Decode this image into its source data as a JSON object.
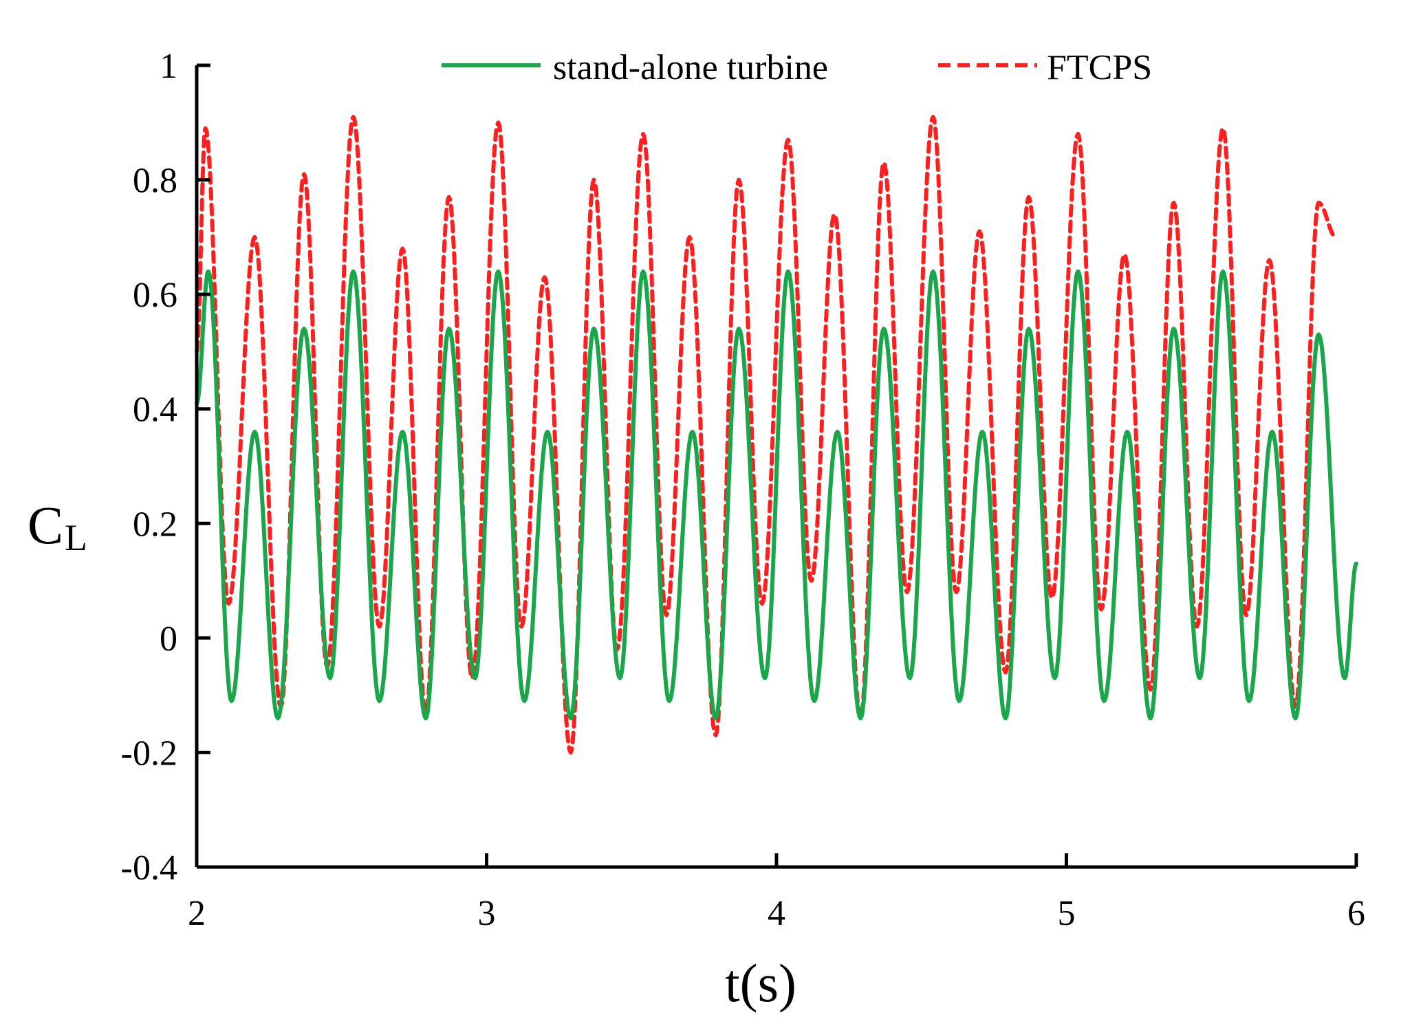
{
  "chart_data": {
    "type": "line",
    "title": "",
    "xlabel": "t(s)",
    "ylabel": "C",
    "ylabel_subscript": "L",
    "xlim": [
      2,
      6
    ],
    "ylim": [
      -0.4,
      1
    ],
    "x_ticks": [
      2,
      3,
      4,
      5,
      6
    ],
    "x_tick_labels": [
      "2",
      "3",
      "4",
      "5",
      "6"
    ],
    "y_ticks": [
      -0.4,
      -0.2,
      0,
      0.2,
      0.4,
      0.6,
      0.8,
      1
    ],
    "y_tick_labels": [
      "-0.4",
      "-0.2",
      "0",
      "0.2",
      "0.4",
      "0.6",
      "0.8",
      "1"
    ],
    "grid": false,
    "legend_position": "top-right",
    "series": [
      {
        "name": "stand-alone turbine",
        "color": "#1aa64a",
        "style": "solid",
        "x": [
          2.0,
          2.04,
          2.12,
          2.2,
          2.28,
          2.37,
          2.46,
          2.54,
          2.63,
          2.71,
          2.79,
          2.87,
          2.96,
          3.04,
          3.13,
          3.21,
          3.29,
          3.37,
          3.46,
          3.54,
          3.63,
          3.71,
          3.79,
          3.87,
          3.96,
          4.04,
          4.13,
          4.21,
          4.29,
          4.37,
          4.46,
          4.54,
          4.63,
          4.71,
          4.79,
          4.87,
          4.96,
          5.04,
          5.13,
          5.21,
          5.29,
          5.37,
          5.46,
          5.54,
          5.63,
          5.71,
          5.79,
          5.87,
          5.96,
          6.0
        ],
        "y": [
          0.41,
          0.64,
          -0.11,
          0.36,
          -0.14,
          0.54,
          -0.07,
          0.64,
          -0.11,
          0.36,
          -0.14,
          0.54,
          -0.07,
          0.64,
          -0.11,
          0.36,
          -0.14,
          0.54,
          -0.07,
          0.64,
          -0.11,
          0.36,
          -0.14,
          0.54,
          -0.07,
          0.64,
          -0.11,
          0.36,
          -0.14,
          0.54,
          -0.07,
          0.64,
          -0.11,
          0.36,
          -0.14,
          0.54,
          -0.07,
          0.64,
          -0.11,
          0.36,
          -0.14,
          0.54,
          -0.07,
          0.64,
          -0.11,
          0.36,
          -0.14,
          0.53,
          -0.07,
          0.13
        ]
      },
      {
        "name": "FTCPS",
        "color": "#ff1f1f",
        "style": "dashed",
        "x": [
          2.0,
          2.03,
          2.11,
          2.2,
          2.29,
          2.37,
          2.45,
          2.54,
          2.63,
          2.71,
          2.79,
          2.87,
          2.95,
          3.04,
          3.12,
          3.2,
          3.29,
          3.37,
          3.45,
          3.54,
          3.62,
          3.7,
          3.79,
          3.87,
          3.95,
          4.04,
          4.12,
          4.2,
          4.29,
          4.37,
          4.45,
          4.54,
          4.62,
          4.7,
          4.79,
          4.87,
          4.95,
          5.04,
          5.12,
          5.2,
          5.29,
          5.37,
          5.45,
          5.54,
          5.62,
          5.7,
          5.79,
          5.87,
          5.93
        ],
        "y": [
          0.5,
          0.89,
          0.06,
          0.7,
          -0.12,
          0.81,
          -0.05,
          0.91,
          0.02,
          0.68,
          -0.13,
          0.77,
          -0.07,
          0.9,
          0.02,
          0.63,
          -0.2,
          0.8,
          -0.02,
          0.88,
          0.04,
          0.7,
          -0.17,
          0.8,
          0.06,
          0.87,
          0.1,
          0.74,
          -0.14,
          0.83,
          0.08,
          0.91,
          0.08,
          0.71,
          -0.06,
          0.77,
          0.07,
          0.88,
          0.05,
          0.67,
          -0.09,
          0.76,
          0.02,
          0.89,
          0.04,
          0.66,
          -0.12,
          0.76,
          0.7
        ]
      }
    ]
  }
}
